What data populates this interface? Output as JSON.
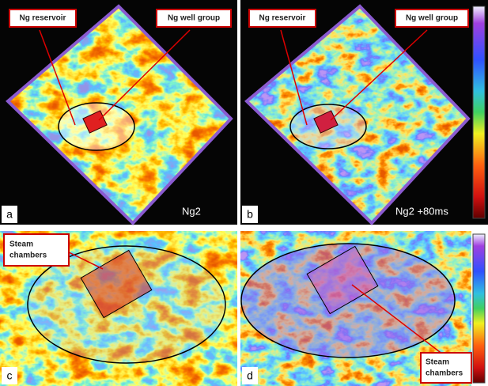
{
  "panels": [
    {
      "label": "a",
      "caption": "Ng2",
      "annotations": [
        "Ng reservoir",
        "Ng well group"
      ]
    },
    {
      "label": "b",
      "caption": "Ng2 +80ms",
      "annotations": [
        "Ng reservoir",
        "Ng well group"
      ]
    },
    {
      "label": "c",
      "annotation_lines": [
        "Steam",
        "chambers"
      ]
    },
    {
      "label": "d",
      "annotation_lines": [
        "Steam",
        "chambers"
      ]
    }
  ]
}
